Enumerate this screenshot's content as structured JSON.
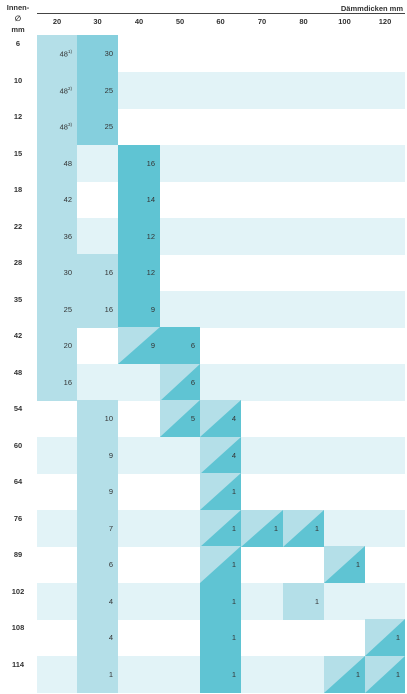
{
  "header": {
    "row_label": [
      "Innen-",
      "∅",
      "mm"
    ],
    "unit_label": "Dämmdicken mm"
  },
  "thicknesses": [
    "20",
    "30",
    "40",
    "50",
    "60",
    "70",
    "80",
    "100",
    "120"
  ],
  "colors": {
    "row_band": "#e2f3f7",
    "light": "#b4dfe8",
    "mid": "#85cfdd",
    "dark": "#5fc4d3"
  },
  "rows": [
    {
      "d": "6",
      "band": false,
      "cells": [
        {
          "c": 0,
          "v": "48",
          "sup": "1)",
          "f": "light"
        },
        {
          "c": 1,
          "v": "30",
          "f": "mid"
        }
      ]
    },
    {
      "d": "10",
      "band": true,
      "cells": [
        {
          "c": 0,
          "v": "48",
          "sup": "2)",
          "f": "light"
        },
        {
          "c": 1,
          "v": "25",
          "f": "mid"
        }
      ]
    },
    {
      "d": "12",
      "band": false,
      "cells": [
        {
          "c": 0,
          "v": "48",
          "sup": "3)",
          "f": "light"
        },
        {
          "c": 1,
          "v": "25",
          "f": "mid"
        }
      ]
    },
    {
      "d": "15",
      "band": true,
      "cells": [
        {
          "c": 0,
          "v": "48",
          "f": "light"
        },
        {
          "c": 2,
          "v": "16",
          "f": "dark"
        }
      ]
    },
    {
      "d": "18",
      "band": false,
      "cells": [
        {
          "c": 0,
          "v": "42",
          "f": "light"
        },
        {
          "c": 2,
          "v": "14",
          "f": "dark"
        }
      ]
    },
    {
      "d": "22",
      "band": true,
      "cells": [
        {
          "c": 0,
          "v": "36",
          "f": "light"
        },
        {
          "c": 2,
          "v": "12",
          "f": "dark"
        }
      ]
    },
    {
      "d": "28",
      "band": false,
      "cells": [
        {
          "c": 0,
          "v": "30",
          "f": "light"
        },
        {
          "c": 1,
          "v": "16",
          "f": "light"
        },
        {
          "c": 2,
          "v": "12",
          "f": "dark"
        }
      ]
    },
    {
      "d": "35",
      "band": true,
      "cells": [
        {
          "c": 0,
          "v": "25",
          "f": "light"
        },
        {
          "c": 1,
          "v": "16",
          "f": "light"
        },
        {
          "c": 2,
          "v": "9",
          "f": "dark"
        }
      ]
    },
    {
      "d": "42",
      "band": false,
      "cells": [
        {
          "c": 0,
          "v": "20",
          "f": "light"
        },
        {
          "c": 2,
          "v": "9",
          "f": "split"
        },
        {
          "c": 3,
          "v": "6",
          "f": "dark"
        }
      ]
    },
    {
      "d": "48",
      "band": true,
      "cells": [
        {
          "c": 0,
          "v": "16",
          "f": "light"
        },
        {
          "c": 3,
          "v": "6",
          "f": "split"
        }
      ]
    },
    {
      "d": "54",
      "band": false,
      "cells": [
        {
          "c": 1,
          "v": "10",
          "f": "light"
        },
        {
          "c": 3,
          "v": "5",
          "f": "split"
        },
        {
          "c": 4,
          "v": "4",
          "f": "split"
        }
      ]
    },
    {
      "d": "60",
      "band": true,
      "cells": [
        {
          "c": 1,
          "v": "9",
          "f": "light"
        },
        {
          "c": 4,
          "v": "4",
          "f": "split"
        }
      ]
    },
    {
      "d": "64",
      "band": false,
      "cells": [
        {
          "c": 1,
          "v": "9",
          "f": "light"
        },
        {
          "c": 4,
          "v": "1",
          "f": "split"
        }
      ]
    },
    {
      "d": "76",
      "band": true,
      "cells": [
        {
          "c": 1,
          "v": "7",
          "f": "light"
        },
        {
          "c": 4,
          "v": "1",
          "f": "split"
        },
        {
          "c": 5,
          "v": "1",
          "f": "split"
        },
        {
          "c": 6,
          "v": "1",
          "f": "split"
        }
      ]
    },
    {
      "d": "89",
      "band": false,
      "cells": [
        {
          "c": 1,
          "v": "6",
          "f": "light"
        },
        {
          "c": 4,
          "v": "1",
          "f": "split"
        },
        {
          "c": 7,
          "v": "1",
          "f": "split"
        }
      ]
    },
    {
      "d": "102",
      "band": true,
      "cells": [
        {
          "c": 1,
          "v": "4",
          "f": "light"
        },
        {
          "c": 4,
          "v": "1",
          "f": "dark"
        },
        {
          "c": 6,
          "v": "1",
          "f": "light"
        }
      ]
    },
    {
      "d": "108",
      "band": false,
      "cells": [
        {
          "c": 1,
          "v": "4",
          "f": "light"
        },
        {
          "c": 4,
          "v": "1",
          "f": "dark"
        },
        {
          "c": 8,
          "v": "1",
          "f": "split"
        }
      ]
    },
    {
      "d": "114",
      "band": true,
      "cells": [
        {
          "c": 1,
          "v": "1",
          "f": "light"
        },
        {
          "c": 4,
          "v": "1",
          "f": "dark"
        },
        {
          "c": 7,
          "v": "1",
          "f": "split"
        },
        {
          "c": 8,
          "v": "1",
          "f": "split"
        }
      ]
    }
  ]
}
